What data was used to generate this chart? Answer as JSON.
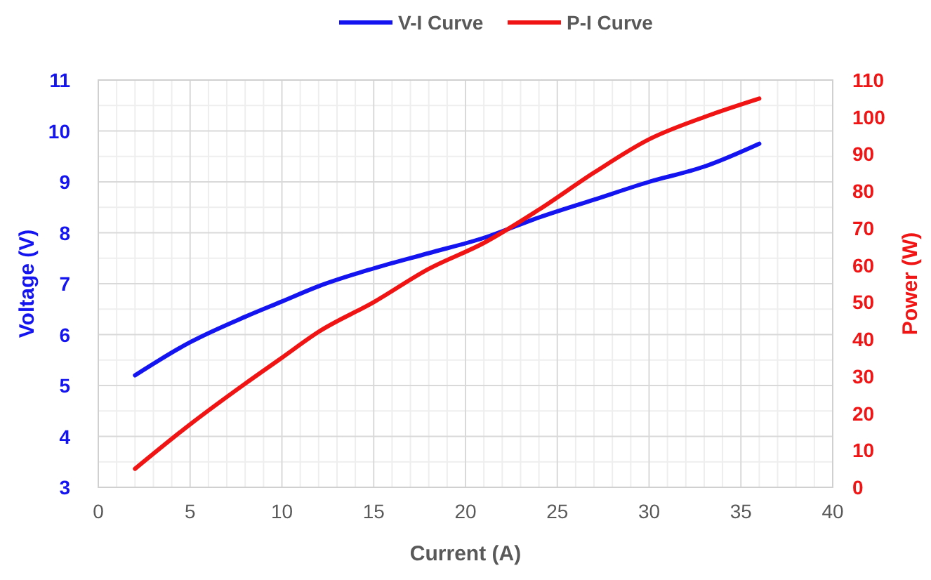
{
  "chart_data": {
    "type": "line",
    "xlabel": "Current (A)",
    "ylabel": "Voltage (V)",
    "y2label": "Power (W)",
    "x": [
      2,
      5,
      8,
      10,
      12,
      15,
      18,
      21,
      24,
      27,
      30,
      33,
      36
    ],
    "series": [
      {
        "name": "V-I Curve",
        "color": "#1414f0",
        "values": [
          5.2,
          5.85,
          6.35,
          6.65,
          6.95,
          7.3,
          7.6,
          7.9,
          8.3,
          8.65,
          9.0,
          9.3,
          9.75
        ]
      },
      {
        "name": "P-I Curve",
        "color": "#f01414",
        "axis": "y2",
        "values": [
          5,
          17,
          28,
          35,
          42,
          50,
          59,
          66,
          75,
          85,
          94,
          100,
          105
        ]
      }
    ],
    "xlim": [
      0,
      40
    ],
    "xticks": [
      0,
      5,
      10,
      15,
      20,
      25,
      30,
      35,
      40
    ],
    "ylim": [
      3,
      11
    ],
    "yticks": [
      3,
      4,
      5,
      6,
      7,
      8,
      9,
      10,
      11
    ],
    "y2lim": [
      0,
      110
    ],
    "y2ticks": [
      0,
      10,
      20,
      30,
      40,
      50,
      60,
      70,
      80,
      90,
      100,
      110
    ],
    "grid": true,
    "legend": "top",
    "marker": "none",
    "line_style": "solid"
  }
}
